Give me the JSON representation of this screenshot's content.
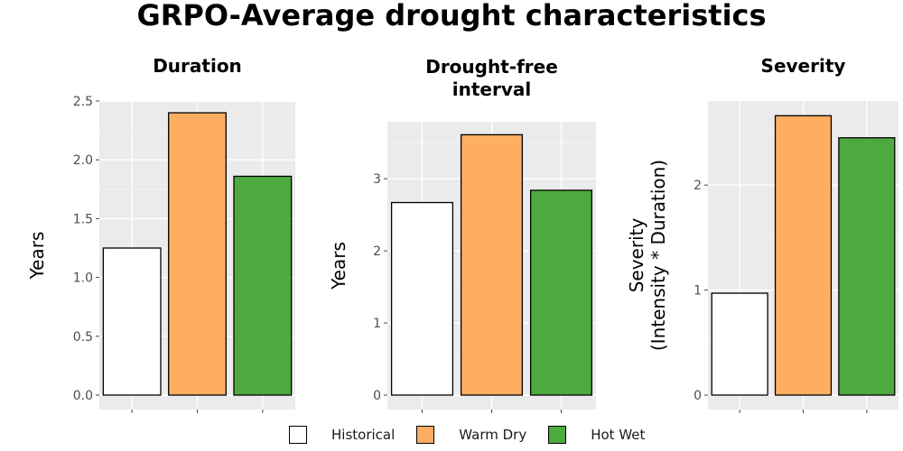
{
  "title": "GRPO-Average drought characteristics",
  "colors": {
    "Historical": "#ffffff",
    "Warm Dry": "#fdae61",
    "Hot Wet": "#4daa3f",
    "panel_bg": "#ebebeb",
    "grid": "#ffffff"
  },
  "legend": {
    "items": [
      "Historical",
      "Warm Dry",
      "Hot Wet"
    ]
  },
  "chart_data": [
    {
      "type": "bar",
      "title": "Duration",
      "ylabel": "Years",
      "categories": [
        "Historical",
        "Warm Dry",
        "Hot Wet"
      ],
      "values": [
        1.25,
        2.4,
        1.86
      ],
      "ylim": [
        0,
        2.5
      ],
      "yticks": [
        0,
        0.5,
        1,
        1.5,
        2,
        2.5
      ],
      "ytick_labels": [
        "0.0",
        "0.5",
        "1.0",
        "1.5",
        "2.0",
        "2.5"
      ],
      "grid": true
    },
    {
      "type": "bar",
      "title": "Drought-free interval",
      "ylabel": "Years",
      "categories": [
        "Historical",
        "Warm Dry",
        "Hot Wet"
      ],
      "values": [
        2.67,
        3.61,
        2.84
      ],
      "ylim": [
        0,
        3.79
      ],
      "yticks": [
        0,
        1,
        2,
        3
      ],
      "ytick_labels": [
        "0",
        "1",
        "2",
        "3"
      ],
      "grid": true
    },
    {
      "type": "bar",
      "title": "Severity",
      "ylabel": "Severity (Intensity * Duration)",
      "categories": [
        "Historical",
        "Warm Dry",
        "Hot Wet"
      ],
      "values": [
        0.97,
        2.66,
        2.45
      ],
      "ylim": [
        0,
        2.8
      ],
      "yticks": [
        0,
        1,
        2
      ],
      "ytick_labels": [
        "0",
        "1",
        "2"
      ],
      "grid": true
    }
  ]
}
